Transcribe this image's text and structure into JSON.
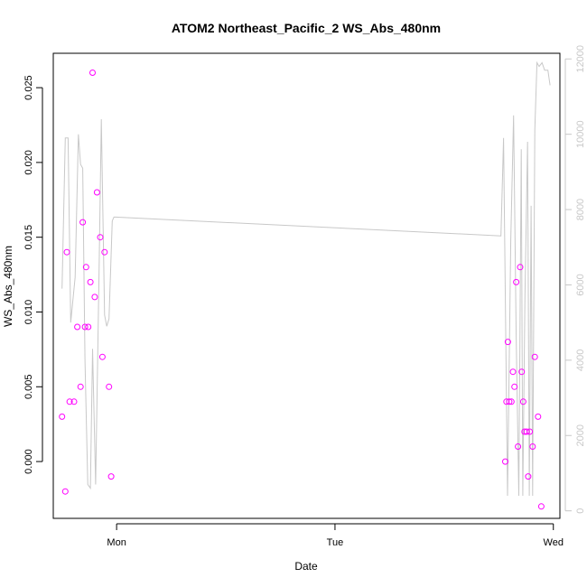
{
  "chart_data": {
    "type": "scatter",
    "title": "ATOM2 Northeast_Pacific_2 WS_Abs_480nm",
    "xlabel": "Date",
    "ylabel": "WS_Abs_480nm",
    "x_ticks": [
      "Mon",
      "Tue",
      "Wed"
    ],
    "y_ticks": [
      "0.000",
      "0.005",
      "0.010",
      "0.015",
      "0.020",
      "0.025"
    ],
    "y2_ticks": [
      "0",
      "2000",
      "4000",
      "6000",
      "8000",
      "10000",
      "12000"
    ],
    "xlim_days": [
      -0.29,
      2.03
    ],
    "ylim": [
      -0.0038,
      0.0273
    ],
    "y2lim": [
      -200,
      12150
    ],
    "colors": {
      "points": "#ff00ff",
      "line": "#c8c8c8",
      "axis": "#000000",
      "right_axis": "#c8c8c8"
    },
    "series": [
      {
        "marker": "circle",
        "x_days": [
          -0.25,
          -0.235,
          -0.228,
          -0.215,
          -0.195,
          -0.18,
          -0.165,
          -0.155,
          -0.145,
          -0.14,
          -0.13,
          -0.12,
          -0.11,
          -0.1,
          -0.09,
          -0.075,
          -0.065,
          -0.055,
          -0.035,
          -0.025,
          1.78,
          1.785,
          1.792,
          1.798,
          1.808,
          1.815,
          1.822,
          1.83,
          1.838,
          1.848,
          1.855,
          1.862,
          1.868,
          1.878,
          1.885,
          1.892,
          1.905,
          1.915,
          1.93,
          1.945
        ],
        "y": [
          0.003,
          -0.002,
          0.014,
          0.004,
          0.004,
          0.009,
          0.005,
          0.016,
          0.009,
          0.013,
          0.009,
          0.012,
          0.026,
          0.011,
          0.018,
          0.015,
          0.007,
          0.014,
          0.005,
          -0.001,
          0.0,
          0.004,
          0.008,
          0.004,
          0.004,
          0.006,
          0.005,
          0.012,
          0.001,
          0.013,
          0.006,
          0.004,
          0.002,
          0.002,
          -0.001,
          0.002,
          0.001,
          0.007,
          0.003,
          -0.003
        ]
      },
      {
        "axis": "right",
        "x_days": [
          -0.25,
          -0.235,
          -0.222,
          -0.21,
          -0.19,
          -0.175,
          -0.165,
          -0.155,
          -0.145,
          -0.132,
          -0.12,
          -0.11,
          -0.096,
          -0.08,
          -0.07,
          -0.055,
          -0.045,
          -0.035,
          -0.02,
          -0.012,
          -0.005,
          1.76,
          1.772,
          1.78,
          1.79,
          1.805,
          1.818,
          1.83,
          1.842,
          1.853,
          1.86,
          1.87,
          1.882,
          1.89,
          1.898,
          1.905,
          1.915,
          1.925,
          1.935,
          1.948,
          1.96,
          1.975,
          1.985
        ],
        "y": [
          5900,
          9900,
          9900,
          5000,
          6200,
          10000,
          9200,
          9100,
          4000,
          700,
          600,
          4300,
          700,
          6500,
          10400,
          5200,
          4900,
          5100,
          7700,
          7800,
          7800,
          7300,
          9900,
          5800,
          400,
          7200,
          10500,
          4600,
          400,
          9600,
          400,
          5700,
          9800,
          400,
          8100,
          400,
          10100,
          11900,
          11800,
          11900,
          11700,
          11700,
          11300
        ]
      }
    ]
  }
}
